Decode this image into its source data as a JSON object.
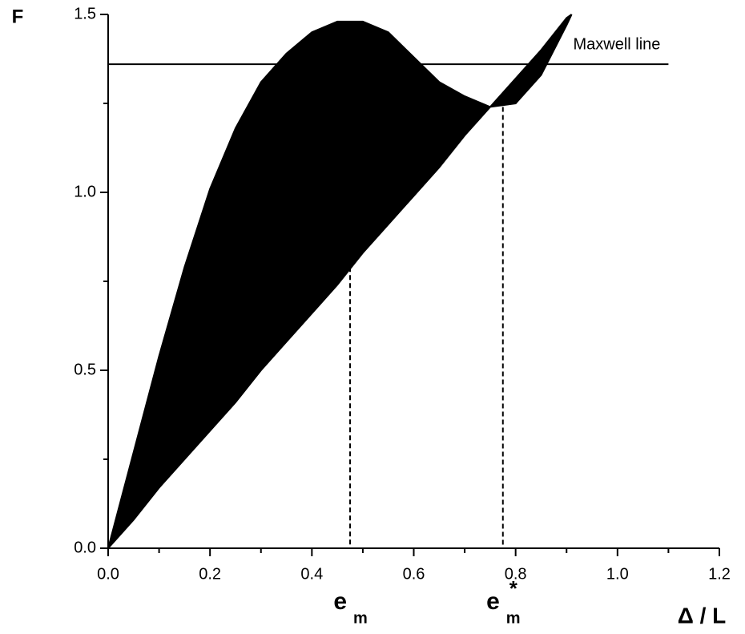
{
  "chart_data": {
    "type": "area",
    "y_label": "F",
    "x_label": "Δ / L",
    "x": [
      0,
      0.05,
      0.1,
      0.15,
      0.2,
      0.25,
      0.3,
      0.35,
      0.4,
      0.45,
      0.5,
      0.55,
      0.6,
      0.65,
      0.7,
      0.75,
      0.8,
      0.85,
      0.9,
      0.91
    ],
    "series": [
      {
        "color": "#000000",
        "values": [
          0,
          0.27,
          0.54,
          0.79,
          1.01,
          1.18,
          1.31,
          1.39,
          1.45,
          1.48,
          1.48,
          1.45,
          1.38,
          1.31,
          1.27,
          1.24,
          1.25,
          1.33,
          1.47,
          1.5
        ]
      },
      {
        "color": "#000000",
        "values": [
          0,
          0.08,
          0.17,
          0.25,
          0.33,
          0.41,
          0.5,
          0.58,
          0.66,
          0.74,
          0.83,
          0.91,
          0.99,
          1.07,
          1.16,
          1.24,
          1.32,
          1.4,
          1.49,
          1.5
        ]
      }
    ],
    "hlines": [
      {
        "y": 1.36,
        "xmin": 0,
        "xmax": 1.1,
        "label": "Maxwell  line"
      }
    ],
    "vlines": [
      {
        "x": 0.475,
        "ymax": 0.79,
        "label": {
          "base": "e",
          "sub": "m"
        }
      },
      {
        "x": 0.775,
        "ymax": 1.24,
        "label": {
          "base": "e",
          "sup": "*",
          "sub": "m"
        }
      }
    ],
    "xlim": [
      0,
      1.2
    ],
    "ylim": [
      0,
      1.5
    ],
    "xticks": [
      {
        "value": 0,
        "label": "0.0"
      },
      {
        "value": 0.2,
        "label": "0.2"
      },
      {
        "value": 0.4,
        "label": "0.4"
      },
      {
        "value": 0.6,
        "label": "0.6"
      },
      {
        "value": 0.8,
        "label": "0.8"
      },
      {
        "value": 1,
        "label": "1.0"
      },
      {
        "value": 1.2,
        "label": "1.2"
      }
    ],
    "yticks": [
      {
        "value": 0,
        "label": "0.0"
      },
      {
        "value": 0.5,
        "label": "0.5"
      },
      {
        "value": 1,
        "label": "1.0"
      },
      1.5
    ],
    "xminor_ticks": [
      0.1,
      0.3,
      0.5,
      0.7,
      0.9,
      1.1
    ],
    "yminor_ticks": [
      0.25,
      0.75,
      1.25
    ]
  }
}
